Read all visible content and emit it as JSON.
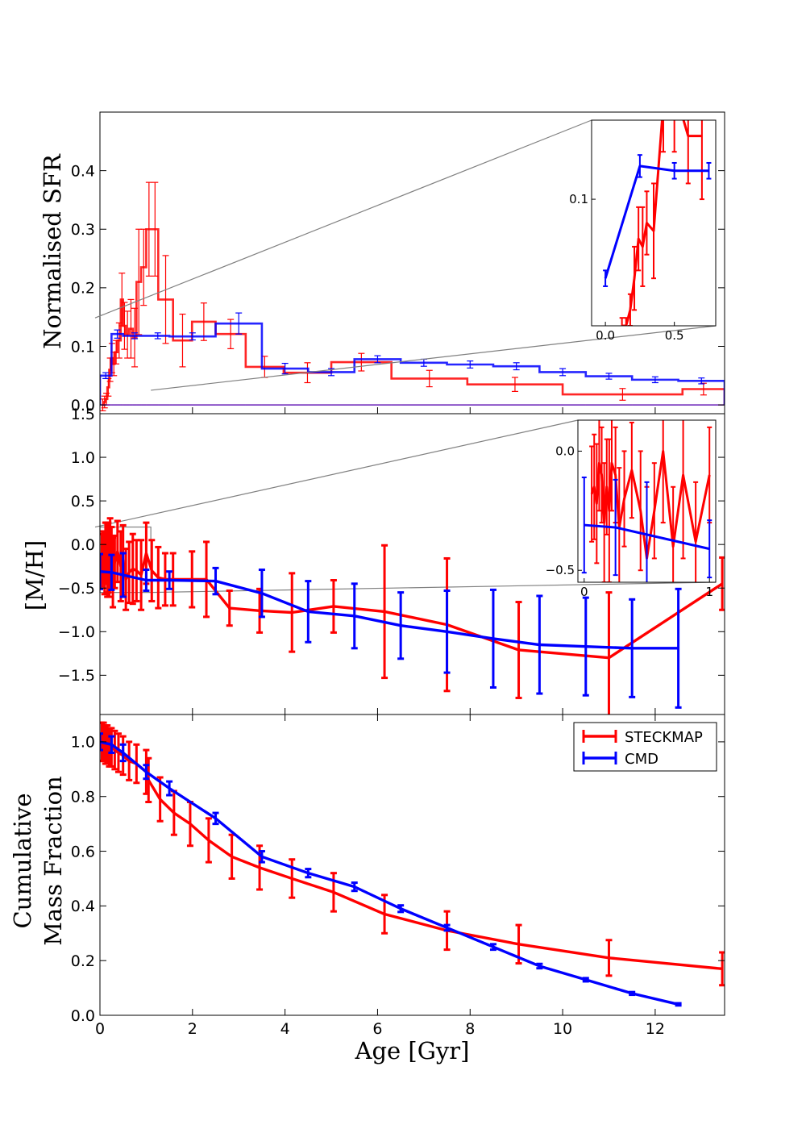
{
  "colors": {
    "steckmap": "#ff0000",
    "cmd": "#0000ff",
    "zoom_lines": "#808080",
    "axes": "#000000"
  },
  "chart_data": [
    {
      "type": "bar",
      "panel": "sfr",
      "ylabel": "Normalised SFR",
      "xlim": [
        0,
        13.5
      ],
      "ylim": [
        -0.015,
        0.5
      ],
      "yticks": [
        0.0,
        0.1,
        0.2,
        0.3,
        0.4
      ],
      "ytick_labels": [
        "0.0",
        "0.1",
        "0.2",
        "0.3",
        "0.4"
      ],
      "series": [
        {
          "name": "STECKMAP",
          "bins": [
            {
              "x0": 0.04,
              "x1": 0.08,
              "y": 0.0,
              "err": 0.01
            },
            {
              "x0": 0.08,
              "x1": 0.12,
              "y": 0.005,
              "err": 0.01
            },
            {
              "x0": 0.12,
              "x1": 0.16,
              "y": 0.01,
              "err": 0.01
            },
            {
              "x0": 0.16,
              "x1": 0.2,
              "y": 0.03,
              "err": 0.015
            },
            {
              "x0": 0.2,
              "x1": 0.24,
              "y": 0.06,
              "err": 0.02
            },
            {
              "x0": 0.24,
              "x1": 0.28,
              "y": 0.08,
              "err": 0.025
            },
            {
              "x0": 0.28,
              "x1": 0.32,
              "y": 0.07,
              "err": 0.02
            },
            {
              "x0": 0.32,
              "x1": 0.38,
              "y": 0.09,
              "err": 0.02
            },
            {
              "x0": 0.38,
              "x1": 0.45,
              "y": 0.11,
              "err": 0.03
            },
            {
              "x0": 0.45,
              "x1": 0.5,
              "y": 0.18,
              "err": 0.045
            },
            {
              "x0": 0.5,
              "x1": 0.56,
              "y": 0.135,
              "err": 0.04
            },
            {
              "x0": 0.56,
              "x1": 0.63,
              "y": 0.12,
              "err": 0.04
            },
            {
              "x0": 0.63,
              "x1": 0.71,
              "y": 0.13,
              "err": 0.05
            },
            {
              "x0": 0.71,
              "x1": 0.79,
              "y": 0.115,
              "err": 0.05
            },
            {
              "x0": 0.79,
              "x1": 0.89,
              "y": 0.21,
              "err": 0.09
            },
            {
              "x0": 0.89,
              "x1": 1.0,
              "y": 0.235,
              "err": 0.065
            },
            {
              "x0": 1.0,
              "x1": 1.12,
              "y": 0.3,
              "err": 0.08
            },
            {
              "x0": 1.12,
              "x1": 1.26,
              "y": 0.3,
              "err": 0.08
            },
            {
              "x0": 1.26,
              "x1": 1.58,
              "y": 0.18,
              "err": 0.075
            },
            {
              "x0": 1.58,
              "x1": 1.99,
              "y": 0.11,
              "err": 0.045
            },
            {
              "x0": 1.99,
              "x1": 2.5,
              "y": 0.142,
              "err": 0.032
            },
            {
              "x0": 2.5,
              "x1": 3.15,
              "y": 0.121,
              "err": 0.025
            },
            {
              "x0": 3.15,
              "x1": 3.97,
              "y": 0.065,
              "err": 0.018
            },
            {
              "x0": 3.97,
              "x1": 5.0,
              "y": 0.055,
              "err": 0.017
            },
            {
              "x0": 5.0,
              "x1": 6.3,
              "y": 0.073,
              "err": 0.015
            },
            {
              "x0": 6.3,
              "x1": 7.94,
              "y": 0.045,
              "err": 0.014
            },
            {
              "x0": 7.94,
              "x1": 10.0,
              "y": 0.035,
              "err": 0.012
            },
            {
              "x0": 10.0,
              "x1": 12.59,
              "y": 0.018,
              "err": 0.01
            },
            {
              "x0": 12.59,
              "x1": 13.5,
              "y": 0.027,
              "err": 0.01
            }
          ]
        },
        {
          "name": "CMD",
          "bins": [
            {
              "x0": 0.0,
              "x1": 0.25,
              "y": 0.05,
              "err": 0.005
            },
            {
              "x0": 0.25,
              "x1": 0.5,
              "y": 0.121,
              "err": 0.007
            },
            {
              "x0": 0.5,
              "x1": 1.0,
              "y": 0.118,
              "err": 0.005
            },
            {
              "x0": 1.0,
              "x1": 1.5,
              "y": 0.118,
              "err": 0.005
            },
            {
              "x0": 1.5,
              "x1": 2.5,
              "y": 0.117,
              "err": 0.006
            },
            {
              "x0": 2.5,
              "x1": 3.5,
              "y": 0.139,
              "err": 0.018
            },
            {
              "x0": 3.5,
              "x1": 4.5,
              "y": 0.062,
              "err": 0.009
            },
            {
              "x0": 4.5,
              "x1": 5.5,
              "y": 0.056,
              "err": 0.006
            },
            {
              "x0": 5.5,
              "x1": 6.5,
              "y": 0.078,
              "err": 0.006
            },
            {
              "x0": 6.5,
              "x1": 7.5,
              "y": 0.072,
              "err": 0.006
            },
            {
              "x0": 7.5,
              "x1": 8.5,
              "y": 0.069,
              "err": 0.006
            },
            {
              "x0": 8.5,
              "x1": 9.5,
              "y": 0.066,
              "err": 0.006
            },
            {
              "x0": 9.5,
              "x1": 10.5,
              "y": 0.056,
              "err": 0.006
            },
            {
              "x0": 10.5,
              "x1": 11.5,
              "y": 0.049,
              "err": 0.005
            },
            {
              "x0": 11.5,
              "x1": 12.5,
              "y": 0.043,
              "err": 0.005
            },
            {
              "x0": 12.5,
              "x1": 13.5,
              "y": 0.041,
              "err": 0.005
            }
          ]
        }
      ],
      "inset": {
        "xlim": [
          -0.1,
          0.8
        ],
        "ylim": [
          0.02,
          0.15
        ],
        "xticks": [
          0.0,
          0.5
        ],
        "xtick_labels": [
          "0.0",
          "0.5"
        ],
        "yticks": [
          0.1
        ],
        "ytick_labels": [
          "0.1"
        ],
        "zoom_region": {
          "x": [
            0,
            1.1
          ],
          "y": [
            0.025,
            0.15
          ]
        },
        "series": [
          {
            "name": "STECKMAP",
            "x": [
              0.12,
              0.15,
              0.18,
              0.21,
              0.24,
              0.27,
              0.3,
              0.35,
              0.42,
              0.5,
              0.6,
              0.7
            ],
            "y": [
              0.02,
              0.02,
              0.03,
              0.05,
              0.075,
              0.07,
              0.085,
              0.08,
              0.16,
              0.17,
              0.14,
              0.14
            ],
            "err": [
              0.005,
              0.005,
              0.01,
              0.02,
              0.02,
              0.025,
              0.02,
              0.03,
              0.03,
              0.04,
              0.03,
              0.04
            ]
          },
          {
            "name": "CMD",
            "x": [
              0.0,
              0.25,
              0.5,
              0.75
            ],
            "y": [
              0.05,
              0.121,
              0.118,
              0.118
            ],
            "err": [
              0.005,
              0.007,
              0.005,
              0.005
            ]
          }
        ]
      }
    },
    {
      "type": "line",
      "panel": "metallicity",
      "ylabel": "[M/H]",
      "xlim": [
        0,
        13.5
      ],
      "ylim": [
        -1.95,
        1.5
      ],
      "yticks": [
        1.5,
        1.0,
        0.5,
        0.0,
        -0.5,
        -1.0,
        -1.5
      ],
      "ytick_labels": [
        "1.5",
        "1.0",
        "0.5",
        "0.0",
        "−0.5",
        "−1.0",
        "−1.5"
      ],
      "series": [
        {
          "name": "STECKMAP",
          "x": [
            0.04,
            0.08,
            0.1,
            0.12,
            0.14,
            0.16,
            0.18,
            0.2,
            0.22,
            0.25,
            0.28,
            0.32,
            0.38,
            0.45,
            0.5,
            0.56,
            0.63,
            0.71,
            0.79,
            0.89,
            1.0,
            1.12,
            1.26,
            1.41,
            1.58,
            1.99,
            2.3,
            2.8,
            3.45,
            4.15,
            5.05,
            6.15,
            7.5,
            9.05,
            11.0,
            13.45
          ],
          "y": [
            -0.18,
            -0.15,
            -0.22,
            -0.05,
            -0.1,
            -0.3,
            -0.15,
            -0.25,
            -0.05,
            -0.1,
            -0.32,
            -0.2,
            -0.08,
            -0.25,
            -0.18,
            -0.4,
            -0.32,
            -0.28,
            -0.3,
            -0.35,
            -0.1,
            -0.3,
            -0.38,
            -0.4,
            -0.4,
            -0.4,
            -0.4,
            -0.73,
            -0.76,
            -0.78,
            -0.71,
            -0.77,
            -0.92,
            -1.21,
            -1.3,
            -0.45
          ],
          "err": [
            0.3,
            0.3,
            0.35,
            0.3,
            0.35,
            0.3,
            0.4,
            0.35,
            0.35,
            0.3,
            0.4,
            0.3,
            0.35,
            0.4,
            0.4,
            0.35,
            0.35,
            0.4,
            0.35,
            0.4,
            0.35,
            0.35,
            0.35,
            0.3,
            0.3,
            0.32,
            0.43,
            0.2,
            0.25,
            0.45,
            0.3,
            0.76,
            0.76,
            0.55,
            0.75,
            0.3
          ]
        },
        {
          "name": "CMD",
          "x": [
            0.0,
            0.25,
            0.5,
            1.0,
            1.5,
            2.5,
            3.5,
            4.5,
            5.5,
            6.5,
            7.5,
            8.5,
            9.5,
            10.5,
            11.5,
            12.5
          ],
          "y": [
            -0.31,
            -0.32,
            -0.35,
            -0.41,
            -0.41,
            -0.42,
            -0.56,
            -0.77,
            -0.82,
            -0.93,
            -1.0,
            -1.08,
            -1.15,
            -1.17,
            -1.19,
            -1.19
          ],
          "err": [
            0.2,
            0.2,
            0.25,
            0.12,
            0.1,
            0.15,
            0.27,
            0.35,
            0.37,
            0.38,
            0.47,
            0.56,
            0.56,
            0.56,
            0.56,
            0.68
          ]
        }
      ],
      "inset": {
        "xlim": [
          -0.05,
          1.05
        ],
        "ylim": [
          -0.55,
          0.13
        ],
        "xticks": [
          0,
          1
        ],
        "xtick_labels": [
          "0",
          "1"
        ],
        "yticks": [
          0.0,
          -0.5
        ],
        "ytick_labels": [
          "0.0",
          "−0.5"
        ],
        "zoom_region": {
          "x": [
            0,
            1.1
          ],
          "y": [
            -0.55,
            0.2
          ]
        },
        "series": [
          {
            "name": "STECKMAP",
            "x": [
              0.06,
              0.08,
              0.1,
              0.12,
              0.14,
              0.16,
              0.18,
              0.2,
              0.22,
              0.25,
              0.28,
              0.32,
              0.38,
              0.45,
              0.5,
              0.56,
              0.63,
              0.71,
              0.79,
              0.89,
              1.0
            ],
            "y": [
              -0.18,
              -0.15,
              -0.22,
              -0.05,
              -0.1,
              -0.3,
              -0.15,
              -0.25,
              -0.05,
              -0.1,
              -0.32,
              -0.2,
              -0.08,
              -0.25,
              -0.45,
              -0.25,
              -0.0,
              -0.4,
              -0.1,
              -0.38,
              -0.1
            ],
            "err": [
              0.2,
              0.22,
              0.25,
              0.2,
              0.2,
              0.25,
              0.2,
              0.3,
              0.2,
              0.2,
              0.25,
              0.2,
              0.2,
              0.25,
              0.3,
              0.2,
              0.3,
              0.25,
              0.35,
              0.25,
              0.2
            ]
          },
          {
            "name": "CMD",
            "x": [
              0.0,
              0.25,
              0.5,
              1.0
            ],
            "y": [
              -0.31,
              -0.32,
              -0.35,
              -0.41
            ],
            "err": [
              0.2,
              0.2,
              0.22,
              0.12
            ]
          }
        ]
      }
    },
    {
      "type": "line",
      "panel": "cumulative",
      "ylabel": [
        "Cumulative",
        "Mass Fraction"
      ],
      "xlabel": "Age [Gyr]",
      "xlim": [
        0,
        13.5
      ],
      "ylim": [
        0.0,
        1.1
      ],
      "xticks": [
        0,
        2,
        4,
        6,
        8,
        10,
        12
      ],
      "xtick_labels": [
        "0",
        "2",
        "4",
        "6",
        "8",
        "10",
        "12"
      ],
      "yticks": [
        0.0,
        0.2,
        0.4,
        0.6,
        0.8,
        1.0
      ],
      "ytick_labels": [
        "0.0",
        "0.2",
        "0.4",
        "0.6",
        "0.8",
        "1.0"
      ],
      "legend": {
        "position": "top-right",
        "entries": [
          "STECKMAP",
          "CMD"
        ]
      },
      "series": [
        {
          "name": "STECKMAP",
          "x": [
            0.04,
            0.08,
            0.12,
            0.16,
            0.2,
            0.25,
            0.32,
            0.4,
            0.5,
            0.63,
            0.79,
            1.0,
            1.05,
            1.3,
            1.6,
            1.95,
            2.35,
            2.85,
            3.45,
            4.15,
            5.05,
            6.15,
            7.5,
            9.05,
            11.0,
            13.45
          ],
          "y": [
            1.0,
            1.0,
            0.99,
            0.99,
            0.98,
            0.98,
            0.97,
            0.96,
            0.95,
            0.93,
            0.92,
            0.89,
            0.86,
            0.79,
            0.74,
            0.7,
            0.64,
            0.58,
            0.54,
            0.5,
            0.45,
            0.37,
            0.31,
            0.26,
            0.21,
            0.17
          ],
          "err": [
            0.07,
            0.07,
            0.07,
            0.07,
            0.07,
            0.07,
            0.07,
            0.07,
            0.07,
            0.07,
            0.07,
            0.08,
            0.08,
            0.08,
            0.08,
            0.08,
            0.08,
            0.08,
            0.08,
            0.07,
            0.07,
            0.07,
            0.07,
            0.07,
            0.065,
            0.06
          ]
        },
        {
          "name": "CMD",
          "x": [
            0.0,
            0.25,
            0.5,
            1.0,
            1.5,
            2.5,
            3.5,
            4.5,
            5.5,
            6.5,
            7.5,
            8.5,
            9.5,
            10.5,
            11.5,
            12.5
          ],
          "y": [
            1.0,
            0.99,
            0.96,
            0.89,
            0.83,
            0.72,
            0.58,
            0.52,
            0.47,
            0.39,
            0.32,
            0.25,
            0.18,
            0.13,
            0.08,
            0.04
          ],
          "err": [
            0.03,
            0.03,
            0.03,
            0.025,
            0.025,
            0.02,
            0.02,
            0.015,
            0.015,
            0.012,
            0.01,
            0.01,
            0.008,
            0.006,
            0.005,
            0.004
          ]
        }
      ]
    }
  ]
}
